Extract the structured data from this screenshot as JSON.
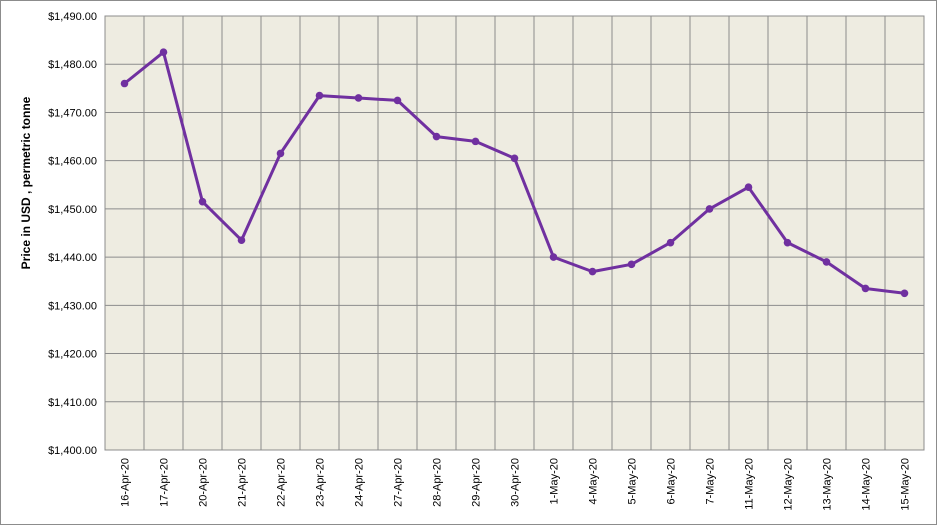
{
  "chart_data": {
    "type": "line",
    "title": "",
    "xlabel": "",
    "ylabel": "Price in USD , permetric tonne",
    "categories": [
      "16-Apr-20",
      "17-Apr-20",
      "20-Apr-20",
      "21-Apr-20",
      "22-Apr-20",
      "23-Apr-20",
      "24-Apr-20",
      "27-Apr-20",
      "28-Apr-20",
      "29-Apr-20",
      "30-Apr-20",
      "1-May-20",
      "4-May-20",
      "5-May-20",
      "6-May-20",
      "7-May-20",
      "11-May-20",
      "12-May-20",
      "13-May-20",
      "14-May-20",
      "15-May-20"
    ],
    "series": [
      {
        "values": [
          1476,
          1482.5,
          1451.5,
          1443.5,
          1461.5,
          1473.5,
          1473,
          1472.5,
          1465,
          1464,
          1460.5,
          1440,
          1437,
          1438.5,
          1443,
          1450,
          1454.5,
          1443,
          1439,
          1433.5,
          1432.5
        ]
      }
    ],
    "ylim": [
      1400,
      1490
    ],
    "yticks": [
      1400,
      1410,
      1420,
      1430,
      1440,
      1450,
      1460,
      1470,
      1480,
      1490
    ],
    "ytick_labels": [
      "$1,400.00",
      "$1,410.00",
      "$1,420.00",
      "$1,430.00",
      "$1,440.00",
      "$1,450.00",
      "$1,460.00",
      "$1,470.00",
      "$1,480.00",
      "$1,490.00"
    ],
    "grid": true,
    "legend": "none",
    "colors": {
      "line": "#7030a0",
      "plot_bg": "#eeece1",
      "grid": "#8c8c8c"
    }
  }
}
